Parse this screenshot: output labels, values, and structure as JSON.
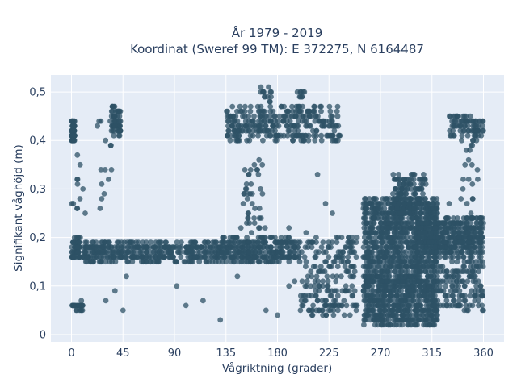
{
  "chart_data": {
    "type": "scatter",
    "title": "År 1979 - 2019",
    "subtitle": "Koordinat (Sweref 99 TM): E 372275, N 6164487",
    "xlabel": "Vågriktning (grader)",
    "ylabel": "Signifikant våghöjd (m)",
    "xlim": [
      -18,
      378
    ],
    "ylim": [
      -0.015,
      0.535
    ],
    "x_ticks": [
      0,
      45,
      90,
      135,
      180,
      225,
      270,
      315,
      360
    ],
    "x_tick_labels": [
      "0",
      "45",
      "90",
      "135",
      "180",
      "225",
      "270",
      "315",
      "360"
    ],
    "y_ticks": [
      0,
      0.1,
      0.2,
      0.3,
      0.4,
      0.5
    ],
    "y_tick_labels": [
      "0",
      "0,1",
      "0,2",
      "0,3",
      "0,4",
      "0,5"
    ],
    "grid": true,
    "marker_color": "#2e5166",
    "plot_background": "#e5ecf6",
    "series": [
      {
        "clusters": [
          {
            "x": [
              0,
              3
            ],
            "y": [
              0.4,
              0.44
            ],
            "n": 60
          },
          {
            "x": [
              0,
              8
            ],
            "y": [
              0.16,
              0.2
            ],
            "n": 60
          },
          {
            "x": [
              0,
              10
            ],
            "y": [
              0.05,
              0.07
            ],
            "n": 25
          },
          {
            "x": [
              0,
              8
            ],
            "y": [
              0.25,
              0.37
            ],
            "n": 10
          },
          {
            "x": [
              35,
              43
            ],
            "y": [
              0.41,
              0.47
            ],
            "n": 60
          },
          {
            "x": [
              22,
              35
            ],
            "y": [
              0.26,
              0.45
            ],
            "n": 15
          },
          {
            "x": [
              10,
              130
            ],
            "y": [
              0.15,
              0.19
            ],
            "n": 400
          },
          {
            "x": [
              130,
              200
            ],
            "y": [
              0.15,
              0.2
            ],
            "n": 300
          },
          {
            "x": [
              200,
              250
            ],
            "y": [
              0.04,
              0.2
            ],
            "n": 200
          },
          {
            "x": [
              135,
              235
            ],
            "y": [
              0.4,
              0.47
            ],
            "n": 300
          },
          {
            "x": [
              150,
              170
            ],
            "y": [
              0.2,
              0.36
            ],
            "n": 40
          },
          {
            "x": [
              165,
              175
            ],
            "y": [
              0.47,
              0.51
            ],
            "n": 15
          },
          {
            "x": [
              196,
              204
            ],
            "y": [
              0.46,
              0.51
            ],
            "n": 12
          },
          {
            "x": [
              255,
              320
            ],
            "y": [
              0.02,
              0.28
            ],
            "n": 1500
          },
          {
            "x": [
              280,
              310
            ],
            "y": [
              0.25,
              0.33
            ],
            "n": 150
          },
          {
            "x": [
              300,
              360
            ],
            "y": [
              0.17,
              0.24
            ],
            "n": 400
          },
          {
            "x": [
              320,
              360
            ],
            "y": [
              0.05,
              0.2
            ],
            "n": 200
          },
          {
            "x": [
              330,
              360
            ],
            "y": [
              0.41,
              0.45
            ],
            "n": 80
          },
          {
            "x": [
              340,
              355
            ],
            "y": [
              0.25,
              0.4
            ],
            "n": 20
          }
        ],
        "points": [
          [
            10,
            0.3
          ],
          [
            12,
            0.25
          ],
          [
            25,
            0.26
          ],
          [
            30,
            0.07
          ],
          [
            38,
            0.09
          ],
          [
            45,
            0.05
          ],
          [
            48,
            0.12
          ],
          [
            92,
            0.1
          ],
          [
            100,
            0.06
          ],
          [
            115,
            0.07
          ],
          [
            130,
            0.03
          ],
          [
            145,
            0.12
          ],
          [
            170,
            0.05
          ],
          [
            180,
            0.04
          ],
          [
            190,
            0.1
          ],
          [
            195,
            0.11
          ],
          [
            210,
            0.05
          ],
          [
            148,
            0.22
          ],
          [
            160,
            0.23
          ],
          [
            190,
            0.22
          ],
          [
            205,
            0.21
          ],
          [
            215,
            0.33
          ],
          [
            222,
            0.27
          ],
          [
            228,
            0.25
          ],
          [
            233,
            0.06
          ],
          [
            330,
            0.27
          ],
          [
            345,
            0.38
          ],
          [
            350,
            0.35
          ],
          [
            358,
            0.22
          ]
        ]
      }
    ]
  }
}
